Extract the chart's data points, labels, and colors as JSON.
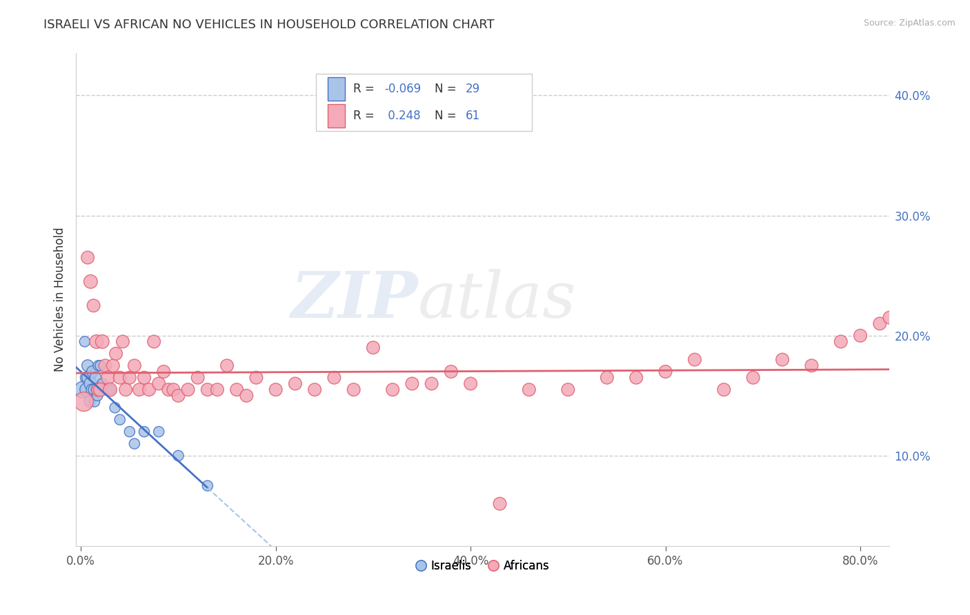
{
  "title": "ISRAELI VS AFRICAN NO VEHICLES IN HOUSEHOLD CORRELATION CHART",
  "source": "Source: ZipAtlas.com",
  "xlabel_bottom": [
    "0.0%",
    "20.0%",
    "40.0%",
    "60.0%",
    "80.0%"
  ],
  "xlabel_bottom_vals": [
    0.0,
    0.2,
    0.4,
    0.6,
    0.8
  ],
  "ylabel_right": [
    "10.0%",
    "20.0%",
    "30.0%",
    "40.0%"
  ],
  "ylabel_right_vals": [
    0.1,
    0.2,
    0.3,
    0.4
  ],
  "xmin": -0.005,
  "xmax": 0.83,
  "ymin": 0.025,
  "ymax": 0.435,
  "ylabel": "No Vehicles in Household",
  "legend_bottom": [
    "Israelis",
    "Africans"
  ],
  "israeli_R": -0.069,
  "israeli_N": 29,
  "african_R": 0.248,
  "african_N": 61,
  "israeli_color": "#aac4e8",
  "african_color": "#f4aab9",
  "israeli_line_color": "#4472c4",
  "african_line_color": "#e06070",
  "dashed_line_color": "#aac4e8",
  "israeli_x": [
    0.002,
    0.004,
    0.005,
    0.006,
    0.007,
    0.008,
    0.009,
    0.01,
    0.011,
    0.012,
    0.013,
    0.014,
    0.015,
    0.016,
    0.017,
    0.018,
    0.02,
    0.022,
    0.025,
    0.028,
    0.03,
    0.035,
    0.04,
    0.05,
    0.055,
    0.065,
    0.08,
    0.1,
    0.13
  ],
  "israeli_y": [
    0.155,
    0.195,
    0.165,
    0.155,
    0.175,
    0.165,
    0.145,
    0.16,
    0.155,
    0.17,
    0.155,
    0.145,
    0.165,
    0.155,
    0.15,
    0.175,
    0.175,
    0.16,
    0.155,
    0.155,
    0.155,
    0.14,
    0.13,
    0.12,
    0.11,
    0.12,
    0.12,
    0.1,
    0.075
  ],
  "israeli_size": [
    300,
    120,
    130,
    200,
    150,
    200,
    130,
    180,
    130,
    150,
    120,
    120,
    140,
    120,
    120,
    120,
    120,
    120,
    120,
    120,
    120,
    120,
    120,
    120,
    120,
    120,
    120,
    120,
    120
  ],
  "african_x": [
    0.003,
    0.007,
    0.01,
    0.013,
    0.016,
    0.018,
    0.02,
    0.022,
    0.025,
    0.028,
    0.03,
    0.033,
    0.036,
    0.04,
    0.043,
    0.046,
    0.05,
    0.055,
    0.06,
    0.065,
    0.07,
    0.075,
    0.08,
    0.085,
    0.09,
    0.095,
    0.1,
    0.11,
    0.12,
    0.13,
    0.14,
    0.15,
    0.16,
    0.17,
    0.18,
    0.2,
    0.22,
    0.24,
    0.26,
    0.28,
    0.3,
    0.32,
    0.34,
    0.36,
    0.38,
    0.4,
    0.43,
    0.46,
    0.5,
    0.54,
    0.57,
    0.6,
    0.63,
    0.66,
    0.69,
    0.72,
    0.75,
    0.78,
    0.8,
    0.82,
    0.83
  ],
  "african_y": [
    0.145,
    0.265,
    0.245,
    0.225,
    0.195,
    0.155,
    0.155,
    0.195,
    0.175,
    0.165,
    0.155,
    0.175,
    0.185,
    0.165,
    0.195,
    0.155,
    0.165,
    0.175,
    0.155,
    0.165,
    0.155,
    0.195,
    0.16,
    0.17,
    0.155,
    0.155,
    0.15,
    0.155,
    0.165,
    0.155,
    0.155,
    0.175,
    0.155,
    0.15,
    0.165,
    0.155,
    0.16,
    0.155,
    0.165,
    0.155,
    0.19,
    0.155,
    0.16,
    0.16,
    0.17,
    0.16,
    0.06,
    0.155,
    0.155,
    0.165,
    0.165,
    0.17,
    0.18,
    0.155,
    0.165,
    0.18,
    0.175,
    0.195,
    0.2,
    0.21,
    0.215
  ],
  "african_size": [
    400,
    180,
    200,
    180,
    200,
    200,
    200,
    200,
    180,
    200,
    200,
    180,
    180,
    180,
    180,
    180,
    180,
    180,
    180,
    180,
    180,
    180,
    180,
    180,
    180,
    180,
    180,
    180,
    180,
    180,
    180,
    180,
    180,
    180,
    180,
    180,
    180,
    180,
    180,
    180,
    180,
    180,
    180,
    180,
    180,
    180,
    180,
    180,
    180,
    180,
    180,
    180,
    180,
    180,
    180,
    180,
    180,
    180,
    180,
    180,
    180
  ],
  "watermark_zip": "ZIP",
  "watermark_atlas": "atlas",
  "bg_color": "#ffffff",
  "grid_color": "#cccccc"
}
